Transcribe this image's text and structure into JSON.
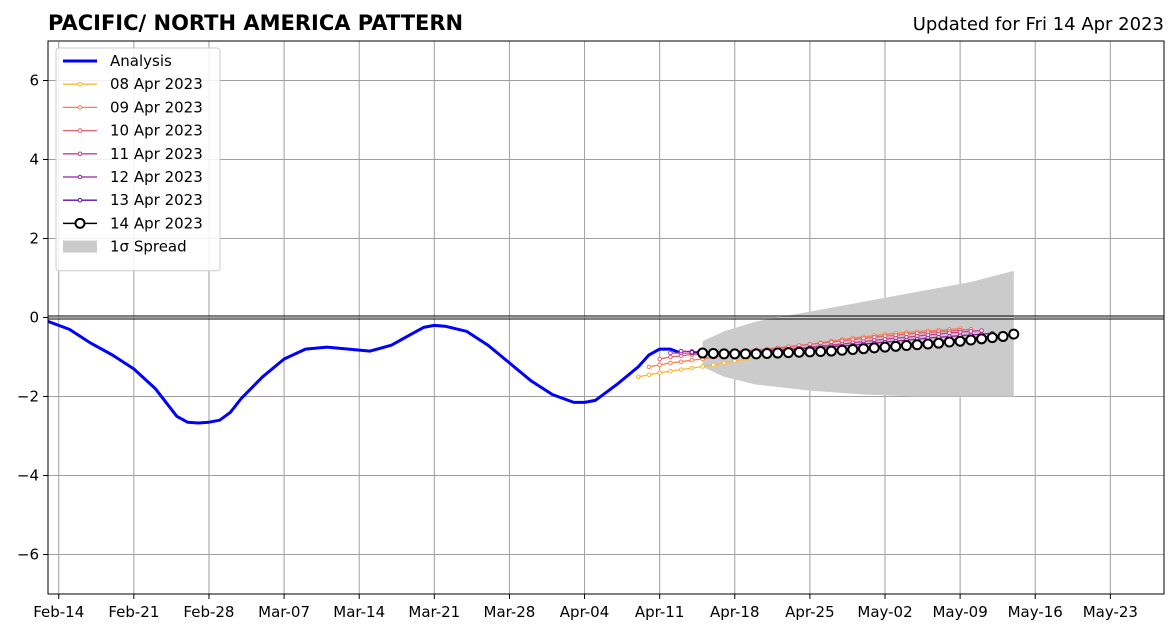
{
  "chart_data": {
    "type": "line",
    "title": "PACIFIC/ NORTH AMERICA PATTERN",
    "subtitle": "Updated for Fri 14 Apr 2023",
    "xlabel": "",
    "ylabel": "",
    "xlim": [
      "2023-02-13",
      "2023-05-28"
    ],
    "ylim": [
      -7,
      7
    ],
    "x_ticks": [
      "2023-02-14",
      "2023-02-21",
      "2023-02-28",
      "2023-03-07",
      "2023-03-14",
      "2023-03-21",
      "2023-03-28",
      "2023-04-04",
      "2023-04-11",
      "2023-04-18",
      "2023-04-25",
      "2023-05-02",
      "2023-05-09",
      "2023-05-16",
      "2023-05-23"
    ],
    "x_tick_labels": [
      "Feb-14",
      "Feb-21",
      "Feb-28",
      "Mar-07",
      "Mar-14",
      "Mar-21",
      "Mar-28",
      "Apr-04",
      "Apr-11",
      "Apr-18",
      "Apr-25",
      "May-02",
      "May-09",
      "May-16",
      "May-23"
    ],
    "y_ticks": [
      -6,
      -4,
      -2,
      0,
      2,
      4,
      6
    ],
    "y_tick_labels": [
      "−6",
      "−4",
      "−2",
      "0",
      "2",
      "4",
      "6"
    ],
    "grid": true,
    "legend_position": "upper-left",
    "series": [
      {
        "name": "Analysis",
        "color": "#0000ff",
        "style": "thick",
        "x": [
          "2023-02-13",
          "2023-02-15",
          "2023-02-17",
          "2023-02-19",
          "2023-02-21",
          "2023-02-23",
          "2023-02-25",
          "2023-02-26",
          "2023-02-27",
          "2023-02-28",
          "2023-03-01",
          "2023-03-02",
          "2023-03-03",
          "2023-03-05",
          "2023-03-07",
          "2023-03-09",
          "2023-03-11",
          "2023-03-13",
          "2023-03-15",
          "2023-03-17",
          "2023-03-19",
          "2023-03-20",
          "2023-03-21",
          "2023-03-22",
          "2023-03-24",
          "2023-03-26",
          "2023-03-28",
          "2023-03-30",
          "2023-04-01",
          "2023-04-03",
          "2023-04-04",
          "2023-04-05",
          "2023-04-07",
          "2023-04-09",
          "2023-04-10",
          "2023-04-11",
          "2023-04-12",
          "2023-04-13"
        ],
        "values": [
          -0.1,
          -0.3,
          -0.65,
          -0.95,
          -1.3,
          -1.8,
          -2.5,
          -2.65,
          -2.67,
          -2.65,
          -2.6,
          -2.4,
          -2.05,
          -1.5,
          -1.05,
          -0.8,
          -0.75,
          -0.8,
          -0.85,
          -0.7,
          -0.4,
          -0.25,
          -0.2,
          -0.22,
          -0.35,
          -0.7,
          -1.15,
          -1.6,
          -1.95,
          -2.15,
          -2.15,
          -2.1,
          -1.7,
          -1.25,
          -0.95,
          -0.8,
          -0.8,
          -0.9
        ]
      },
      {
        "name": "08 Apr 2023",
        "color": "#fbb735",
        "style": "thin-dots",
        "x": [
          "2023-04-09",
          "2023-04-10",
          "2023-04-11",
          "2023-04-12",
          "2023-04-13",
          "2023-04-14",
          "2023-04-15",
          "2023-04-16",
          "2023-04-17",
          "2023-04-18",
          "2023-04-19",
          "2023-04-20",
          "2023-04-21",
          "2023-04-22",
          "2023-04-23",
          "2023-04-24"
        ],
        "values": [
          -1.5,
          -1.45,
          -1.4,
          -1.36,
          -1.32,
          -1.28,
          -1.24,
          -1.2,
          -1.15,
          -1.1,
          -1.05,
          -1.0,
          -0.95,
          -0.9,
          -0.85,
          -0.8
        ]
      },
      {
        "name": "09 Apr 2023",
        "color": "#f8824d",
        "style": "thin-dots",
        "x": [
          "2023-04-10",
          "2023-04-11",
          "2023-04-12",
          "2023-04-13",
          "2023-04-14",
          "2023-04-15",
          "2023-04-16",
          "2023-04-17",
          "2023-04-18",
          "2023-04-19",
          "2023-04-20",
          "2023-04-21",
          "2023-04-22",
          "2023-04-23",
          "2023-04-24",
          "2023-04-25",
          "2023-04-26",
          "2023-04-27",
          "2023-04-28",
          "2023-04-29",
          "2023-04-30",
          "2023-05-01",
          "2023-05-02",
          "2023-05-03",
          "2023-05-04",
          "2023-05-05",
          "2023-05-06",
          "2023-05-07",
          "2023-05-08",
          "2023-05-09"
        ],
        "values": [
          -1.25,
          -1.2,
          -1.15,
          -1.12,
          -1.08,
          -1.05,
          -1.0,
          -0.98,
          -0.95,
          -0.92,
          -0.88,
          -0.84,
          -0.8,
          -0.76,
          -0.72,
          -0.68,
          -0.64,
          -0.6,
          -0.56,
          -0.52,
          -0.49,
          -0.46,
          -0.43,
          -0.4,
          -0.38,
          -0.36,
          -0.34,
          -0.32,
          -0.3,
          -0.28
        ]
      },
      {
        "name": "10 Apr 2023",
        "color": "#e5616d",
        "style": "thin-dots",
        "x": [
          "2023-04-11",
          "2023-04-12",
          "2023-04-13",
          "2023-04-14",
          "2023-04-15",
          "2023-04-16",
          "2023-04-17",
          "2023-04-18",
          "2023-04-19",
          "2023-04-20",
          "2023-04-21",
          "2023-04-22",
          "2023-04-23",
          "2023-04-24",
          "2023-04-25",
          "2023-04-26",
          "2023-04-27",
          "2023-04-28",
          "2023-04-29",
          "2023-04-30",
          "2023-05-01",
          "2023-05-02",
          "2023-05-03",
          "2023-05-04",
          "2023-05-05",
          "2023-05-06",
          "2023-05-07",
          "2023-05-08",
          "2023-05-09",
          "2023-05-10"
        ],
        "values": [
          -1.05,
          -1.0,
          -0.97,
          -0.94,
          -0.92,
          -0.9,
          -0.88,
          -0.86,
          -0.84,
          -0.82,
          -0.8,
          -0.77,
          -0.74,
          -0.71,
          -0.68,
          -0.65,
          -0.62,
          -0.59,
          -0.56,
          -0.53,
          -0.5,
          -0.47,
          -0.45,
          -0.42,
          -0.4,
          -0.38,
          -0.36,
          -0.34,
          -0.32,
          -0.3
        ]
      },
      {
        "name": "11 Apr 2023",
        "color": "#c53d92",
        "style": "thin-dots",
        "x": [
          "2023-04-12",
          "2023-04-13",
          "2023-04-14",
          "2023-04-15",
          "2023-04-16",
          "2023-04-17",
          "2023-04-18",
          "2023-04-19",
          "2023-04-20",
          "2023-04-21",
          "2023-04-22",
          "2023-04-23",
          "2023-04-24",
          "2023-04-25",
          "2023-04-26",
          "2023-04-27",
          "2023-04-28",
          "2023-04-29",
          "2023-04-30",
          "2023-05-01",
          "2023-05-02",
          "2023-05-03",
          "2023-05-04",
          "2023-05-05",
          "2023-05-06",
          "2023-05-07",
          "2023-05-08",
          "2023-05-09",
          "2023-05-10",
          "2023-05-11"
        ],
        "values": [
          -0.9,
          -0.9,
          -0.9,
          -0.9,
          -0.9,
          -0.89,
          -0.88,
          -0.87,
          -0.86,
          -0.84,
          -0.82,
          -0.8,
          -0.78,
          -0.75,
          -0.72,
          -0.7,
          -0.67,
          -0.64,
          -0.61,
          -0.58,
          -0.55,
          -0.52,
          -0.5,
          -0.47,
          -0.44,
          -0.42,
          -0.39,
          -0.37,
          -0.35,
          -0.33
        ]
      },
      {
        "name": "12 Apr 2023",
        "color": "#9a1ca8",
        "style": "thin-dots",
        "x": [
          "2023-04-13",
          "2023-04-14",
          "2023-04-15",
          "2023-04-16",
          "2023-04-17",
          "2023-04-18",
          "2023-04-19",
          "2023-04-20",
          "2023-04-21",
          "2023-04-22",
          "2023-04-23",
          "2023-04-24",
          "2023-04-25",
          "2023-04-26",
          "2023-04-27",
          "2023-04-28",
          "2023-04-29",
          "2023-04-30",
          "2023-05-01",
          "2023-05-02",
          "2023-05-03",
          "2023-05-04",
          "2023-05-05",
          "2023-05-06",
          "2023-05-07",
          "2023-05-08",
          "2023-05-09",
          "2023-05-10",
          "2023-05-11",
          "2023-05-12"
        ],
        "values": [
          -0.85,
          -0.86,
          -0.87,
          -0.87,
          -0.87,
          -0.86,
          -0.86,
          -0.85,
          -0.84,
          -0.83,
          -0.82,
          -0.8,
          -0.78,
          -0.76,
          -0.74,
          -0.72,
          -0.7,
          -0.67,
          -0.65,
          -0.62,
          -0.6,
          -0.57,
          -0.55,
          -0.52,
          -0.5,
          -0.48,
          -0.46,
          -0.44,
          -0.42,
          -0.4
        ]
      },
      {
        "name": "13 Apr 2023",
        "color": "#5b0ba8",
        "style": "thin-dots",
        "x": [
          "2023-04-14",
          "2023-04-15",
          "2023-04-16",
          "2023-04-17",
          "2023-04-18",
          "2023-04-19",
          "2023-04-20",
          "2023-04-21",
          "2023-04-22",
          "2023-04-23",
          "2023-04-24",
          "2023-04-25",
          "2023-04-26",
          "2023-04-27",
          "2023-04-28",
          "2023-04-29",
          "2023-04-30",
          "2023-05-01",
          "2023-05-02",
          "2023-05-03",
          "2023-05-04",
          "2023-05-05",
          "2023-05-06",
          "2023-05-07",
          "2023-05-08",
          "2023-05-09",
          "2023-05-10",
          "2023-05-11",
          "2023-05-12",
          "2023-05-13"
        ],
        "values": [
          -0.88,
          -0.89,
          -0.9,
          -0.9,
          -0.9,
          -0.9,
          -0.89,
          -0.88,
          -0.87,
          -0.86,
          -0.85,
          -0.84,
          -0.83,
          -0.82,
          -0.8,
          -0.78,
          -0.76,
          -0.74,
          -0.72,
          -0.7,
          -0.67,
          -0.65,
          -0.62,
          -0.6,
          -0.57,
          -0.55,
          -0.52,
          -0.5,
          -0.47,
          -0.45
        ]
      },
      {
        "name": "14 Apr 2023",
        "color": "#000000",
        "style": "circles",
        "x": [
          "2023-04-15",
          "2023-04-16",
          "2023-04-17",
          "2023-04-18",
          "2023-04-19",
          "2023-04-20",
          "2023-04-21",
          "2023-04-22",
          "2023-04-23",
          "2023-04-24",
          "2023-04-25",
          "2023-04-26",
          "2023-04-27",
          "2023-04-28",
          "2023-04-29",
          "2023-04-30",
          "2023-05-01",
          "2023-05-02",
          "2023-05-03",
          "2023-05-04",
          "2023-05-05",
          "2023-05-06",
          "2023-05-07",
          "2023-05-08",
          "2023-05-09",
          "2023-05-10",
          "2023-05-11",
          "2023-05-12",
          "2023-05-13",
          "2023-05-14"
        ],
        "values": [
          -0.9,
          -0.91,
          -0.92,
          -0.92,
          -0.92,
          -0.92,
          -0.91,
          -0.9,
          -0.89,
          -0.88,
          -0.87,
          -0.86,
          -0.85,
          -0.83,
          -0.81,
          -0.79,
          -0.77,
          -0.75,
          -0.73,
          -0.71,
          -0.69,
          -0.67,
          -0.65,
          -0.62,
          -0.6,
          -0.57,
          -0.54,
          -0.51,
          -0.48,
          -0.42
        ]
      }
    ],
    "spread": {
      "name": "1σ Spread",
      "color": "#cbcbcb",
      "x": [
        "2023-04-15",
        "2023-04-17",
        "2023-04-20",
        "2023-04-25",
        "2023-04-30",
        "2023-05-05",
        "2023-05-10",
        "2023-05-14"
      ],
      "upper": [
        -0.6,
        -0.35,
        -0.1,
        0.15,
        0.4,
        0.65,
        0.9,
        1.18
      ],
      "lower": [
        -1.25,
        -1.5,
        -1.7,
        -1.85,
        -1.95,
        -2.0,
        -2.0,
        -2.0
      ]
    },
    "zero_line": 0
  }
}
